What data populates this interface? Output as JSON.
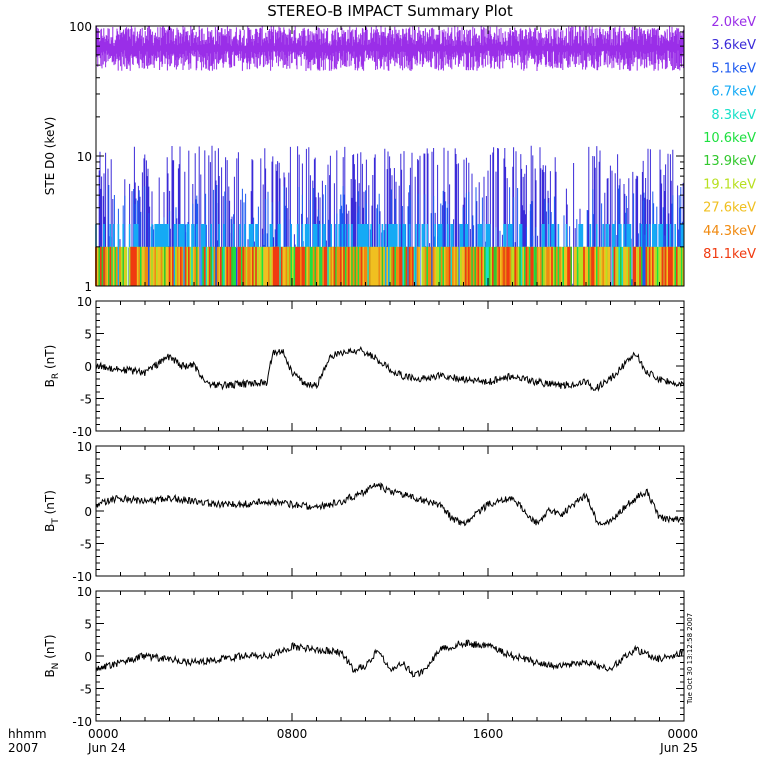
{
  "chart_data": [
    {
      "type": "line",
      "title": "STEREO-B IMPACT Summary Plot",
      "ylabel": "STE D0 (keV)",
      "yscale": "log",
      "ylim": [
        1,
        100
      ],
      "yticks": [
        "1",
        "10",
        "100"
      ],
      "legend_position": "right",
      "series": [
        {
          "name": "2.0keV",
          "color": "#9a2ee8",
          "level_range": [
            45,
            100
          ]
        },
        {
          "name": "3.6keV",
          "color": "#3a2ad8",
          "level_range": [
            1,
            12
          ]
        },
        {
          "name": "5.1keV",
          "color": "#1e5af0",
          "level_range": [
            1,
            6
          ]
        },
        {
          "name": "6.7keV",
          "color": "#15aaf5",
          "level_range": [
            1,
            3
          ]
        },
        {
          "name": "8.3keV",
          "color": "#18e0c8",
          "level_range": [
            1,
            2
          ]
        },
        {
          "name": "10.6keV",
          "color": "#1ee040",
          "level_range": [
            1,
            2
          ]
        },
        {
          "name": "13.9keV",
          "color": "#33c82e",
          "level_range": [
            1,
            2
          ]
        },
        {
          "name": "19.1keV",
          "color": "#b8e020",
          "level_range": [
            1,
            2
          ]
        },
        {
          "name": "27.6keV",
          "color": "#f0c020",
          "level_range": [
            1,
            2
          ]
        },
        {
          "name": "44.3keV",
          "color": "#f08a10",
          "level_range": [
            1,
            2
          ]
        },
        {
          "name": "81.1keV",
          "color": "#f03a10",
          "level_range": [
            1,
            2
          ]
        }
      ]
    },
    {
      "type": "line",
      "ylabel_main": "B",
      "ylabel_sub": "R",
      "ylabel_unit": " (nT)",
      "ylim": [
        -10,
        10
      ],
      "yticks": [
        "-10",
        "-5",
        "0",
        "5",
        "10"
      ],
      "series": [
        {
          "t": [
            0,
            1,
            2,
            3,
            3.5,
            4,
            4.5,
            5,
            6,
            7,
            7.2,
            7.6,
            8,
            8.6,
            9,
            9.6,
            10,
            10.8,
            11.3,
            12,
            12.5,
            13,
            14,
            15,
            16,
            17,
            18,
            19,
            20,
            20.4,
            21,
            22,
            22.5,
            23,
            24
          ],
          "v": [
            0,
            -0.5,
            -1,
            1.5,
            0,
            0,
            -2.5,
            -3,
            -2.8,
            -2.5,
            2,
            2.5,
            -1,
            -3,
            -3,
            1.5,
            2,
            2.5,
            1.5,
            -0.5,
            -1.5,
            -2,
            -1.5,
            -2,
            -2.5,
            -1.5,
            -2.5,
            -3,
            -2.5,
            -3.5,
            -2,
            2,
            -1,
            -2,
            -3
          ]
        }
      ]
    },
    {
      "type": "line",
      "ylabel_main": "B",
      "ylabel_sub": "T",
      "ylabel_unit": " (nT)",
      "ylim": [
        -10,
        10
      ],
      "yticks": [
        "-10",
        "-5",
        "0",
        "5",
        "10"
      ],
      "series": [
        {
          "t": [
            0,
            1,
            2,
            3,
            4,
            5,
            6,
            7,
            8,
            9,
            10,
            11,
            11.5,
            12,
            13,
            14,
            14.5,
            15,
            16,
            17,
            17.5,
            18,
            18.5,
            19,
            20,
            20.5,
            21,
            22,
            22.5,
            23,
            24
          ],
          "v": [
            1,
            2,
            1.5,
            2,
            1.5,
            1,
            1,
            1.5,
            1,
            0.5,
            1.5,
            3,
            4,
            3,
            2,
            1,
            -1,
            -2,
            1,
            2,
            0,
            -2,
            0,
            -0.5,
            2.5,
            -2,
            -1.5,
            2,
            3,
            -1,
            -1.5
          ]
        }
      ]
    },
    {
      "type": "line",
      "ylabel_main": "B",
      "ylabel_sub": "N",
      "ylabel_unit": " (nT)",
      "ylim": [
        -10,
        10
      ],
      "yticks": [
        "-10",
        "-5",
        "0",
        "5",
        "10"
      ],
      "xticks": [
        {
          "time": "0000",
          "date": "Jun 24"
        },
        {
          "time": "0800",
          "date": ""
        },
        {
          "time": "1600",
          "date": ""
        },
        {
          "time": "0000",
          "date": "Jun 25"
        }
      ],
      "xlabel_time": "hhmm",
      "xlabel_year": "2007",
      "series": [
        {
          "t": [
            0,
            1,
            2,
            3,
            4,
            5,
            6,
            7,
            8,
            9,
            10,
            10.5,
            11,
            11.5,
            12,
            12.5,
            13,
            13.5,
            14,
            15,
            16,
            17,
            18,
            19,
            20,
            21,
            22,
            23,
            24
          ],
          "v": [
            -2,
            -1,
            0,
            -0.5,
            -1,
            -0.5,
            0,
            0,
            1.5,
            1,
            0.5,
            -2,
            -1.5,
            1,
            -2,
            -1,
            -3,
            -2,
            1,
            2,
            1.5,
            0,
            -1,
            -1.5,
            -1,
            -2,
            1,
            -0.5,
            0.5
          ]
        }
      ]
    }
  ],
  "timestamp_note": "Tue Oct 30 13:12:58 2007"
}
